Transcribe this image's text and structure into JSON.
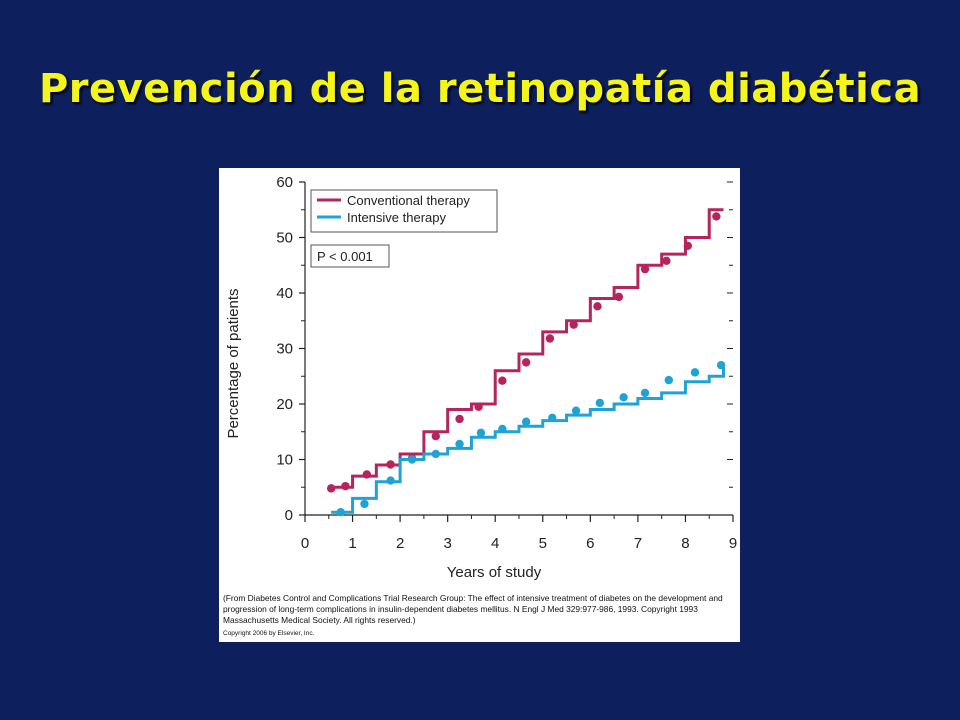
{
  "slide": {
    "title": "Prevención de la retinopatía diabética"
  },
  "colors": {
    "background": "#0d1f5c",
    "title": "#f5f51a",
    "conventional": "#b5245c",
    "intensive": "#1fa3d6"
  },
  "chart_data": {
    "type": "line",
    "xlabel": "Years of study",
    "ylabel": "Percentage of patients",
    "xlim": [
      0,
      9
    ],
    "ylim": [
      0,
      60
    ],
    "xticks": [
      0,
      1,
      2,
      3,
      4,
      5,
      6,
      7,
      8,
      9
    ],
    "yticks": [
      0,
      10,
      20,
      30,
      40,
      50,
      60
    ],
    "grid": false,
    "legend_position": "top-left",
    "annotation": "P < 0.001",
    "series": [
      {
        "name": "Conventional therapy",
        "color": "#b5245c",
        "step_x": [
          0.5,
          1.0,
          1.5,
          2.0,
          2.5,
          3.0,
          3.5,
          4.0,
          4.5,
          5.0,
          5.5,
          6.0,
          6.5,
          7.0,
          7.5,
          8.0,
          8.5,
          8.8
        ],
        "step_y": [
          5,
          7,
          9,
          11,
          15,
          19,
          20,
          26,
          29,
          33,
          35,
          39,
          41,
          45,
          47,
          50,
          55,
          55
        ],
        "points_x": [
          0.55,
          0.85,
          1.3,
          1.8,
          2.25,
          2.75,
          3.25,
          3.65,
          4.15,
          4.65,
          5.15,
          5.65,
          6.15,
          6.6,
          7.15,
          7.6,
          8.05,
          8.65
        ],
        "points_y": [
          4.8,
          5.2,
          7.3,
          9.1,
          10.2,
          14.2,
          17.3,
          19.5,
          24.2,
          27.5,
          31.8,
          34.3,
          37.6,
          39.3,
          44.3,
          45.8,
          48.5,
          53.8
        ]
      },
      {
        "name": "Intensive therapy",
        "color": "#1fa3d6",
        "step_x": [
          0.55,
          1.0,
          1.5,
          2.0,
          2.5,
          3.0,
          3.5,
          4.0,
          4.5,
          5.0,
          5.5,
          6.0,
          6.5,
          7.0,
          7.5,
          8.0,
          8.5,
          8.8
        ],
        "step_y": [
          0.5,
          3,
          6,
          10,
          11,
          12,
          14,
          15,
          16,
          17,
          18,
          19,
          20,
          21,
          22,
          24,
          25,
          27
        ],
        "points_x": [
          0.75,
          1.25,
          1.8,
          2.25,
          2.75,
          3.25,
          3.7,
          4.15,
          4.65,
          5.2,
          5.7,
          6.2,
          6.7,
          7.15,
          7.65,
          8.2,
          8.75
        ],
        "points_y": [
          0.5,
          2.0,
          6.2,
          10.0,
          11.0,
          12.8,
          14.8,
          15.5,
          16.8,
          17.5,
          18.8,
          20.2,
          21.2,
          22.0,
          24.3,
          25.7,
          27.0
        ]
      }
    ]
  },
  "figure": {
    "citation": "(From Diabetes Control and Complications Trial Research Group: The effect of intensive treatment of diabetes on the development and progression of long-term complications in insulin-dependent diabetes mellitus. N Engl J Med 329:977-986, 1993. Copyright 1993 Massachusetts Medical Society. All rights reserved.)",
    "copyright": "Copyright 2006 by Elsevier, Inc."
  }
}
